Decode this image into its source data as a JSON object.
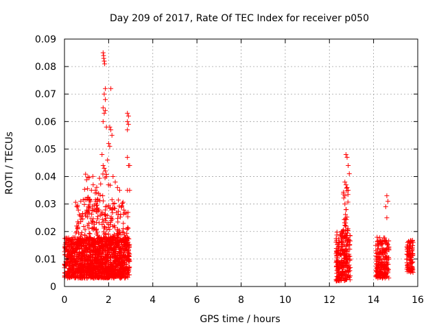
{
  "chart_data": {
    "type": "scatter",
    "title": "Day 209 of 2017, Rate Of TEC Index for receiver p050",
    "xlabel": "GPS time / hours",
    "ylabel": "ROTI / TECUs",
    "xlim": [
      0,
      16
    ],
    "ylim": [
      0,
      0.09
    ],
    "xticks": [
      0,
      2,
      4,
      6,
      8,
      10,
      12,
      14,
      16
    ],
    "xtick_labels": [
      "0",
      "2",
      "4",
      "6",
      "8",
      "10",
      "12",
      "14",
      "16"
    ],
    "yticks": [
      0,
      0.01,
      0.02,
      0.03,
      0.04,
      0.05,
      0.06,
      0.07,
      0.08,
      0.09
    ],
    "ytick_labels": [
      "0",
      "0.01",
      "0.02",
      "0.03",
      "0.04",
      "0.05",
      "0.06",
      "0.07",
      "0.08",
      "0.09"
    ],
    "grid": true,
    "marker": "+",
    "color": "#ff0000",
    "series": [
      {
        "name": "ROTI",
        "clusters": [
          {
            "x": [
              0.0,
              2.95
            ],
            "y": [
              0.003,
              0.018
            ],
            "count": 1400
          },
          {
            "x": [
              0.5,
              2.9
            ],
            "y": [
              0.015,
              0.032
            ],
            "count": 260
          },
          {
            "x": [
              0.9,
              2.1
            ],
            "y": [
              0.03,
              0.041
            ],
            "count": 30
          },
          {
            "x": [
              12.3,
              12.95
            ],
            "y": [
              0.002,
              0.02
            ],
            "count": 260
          },
          {
            "x": [
              12.6,
              12.85
            ],
            "y": [
              0.02,
              0.038
            ],
            "count": 25
          },
          {
            "x": [
              14.1,
              14.7
            ],
            "y": [
              0.003,
              0.018
            ],
            "count": 220
          },
          {
            "x": [
              15.5,
              15.8
            ],
            "y": [
              0.005,
              0.017
            ],
            "count": 100
          }
        ],
        "points": [
          [
            1.75,
            0.085
          ],
          [
            1.77,
            0.084
          ],
          [
            1.8,
            0.082
          ],
          [
            1.78,
            0.083
          ],
          [
            1.82,
            0.081
          ],
          [
            1.85,
            0.072
          ],
          [
            2.1,
            0.072
          ],
          [
            1.8,
            0.07
          ],
          [
            1.85,
            0.068
          ],
          [
            1.75,
            0.065
          ],
          [
            1.85,
            0.064
          ],
          [
            1.8,
            0.063
          ],
          [
            1.75,
            0.06
          ],
          [
            1.9,
            0.058
          ],
          [
            2.85,
            0.063
          ],
          [
            2.9,
            0.062
          ],
          [
            2.85,
            0.06
          ],
          [
            2.9,
            0.059
          ],
          [
            2.85,
            0.057
          ],
          [
            2.05,
            0.058
          ],
          [
            2.1,
            0.057
          ],
          [
            2.15,
            0.055
          ],
          [
            2.0,
            0.052
          ],
          [
            2.05,
            0.051
          ],
          [
            1.7,
            0.048
          ],
          [
            1.95,
            0.046
          ],
          [
            1.75,
            0.044
          ],
          [
            1.8,
            0.043
          ],
          [
            1.85,
            0.042
          ],
          [
            1.9,
            0.04
          ],
          [
            2.85,
            0.047
          ],
          [
            2.9,
            0.044
          ],
          [
            2.95,
            0.044
          ],
          [
            2.85,
            0.035
          ],
          [
            2.95,
            0.035
          ],
          [
            2.2,
            0.04
          ],
          [
            2.3,
            0.038
          ],
          [
            2.4,
            0.036
          ],
          [
            2.5,
            0.035
          ],
          [
            1.4,
            0.035
          ],
          [
            1.3,
            0.037
          ],
          [
            12.75,
            0.048
          ],
          [
            12.8,
            0.047
          ],
          [
            12.85,
            0.044
          ],
          [
            12.9,
            0.041
          ],
          [
            12.7,
            0.038
          ],
          [
            12.75,
            0.037
          ],
          [
            12.8,
            0.036
          ],
          [
            12.85,
            0.035
          ],
          [
            12.7,
            0.03
          ],
          [
            12.75,
            0.028
          ],
          [
            14.6,
            0.033
          ],
          [
            14.65,
            0.031
          ],
          [
            14.55,
            0.029
          ],
          [
            14.6,
            0.025
          ]
        ]
      }
    ]
  }
}
